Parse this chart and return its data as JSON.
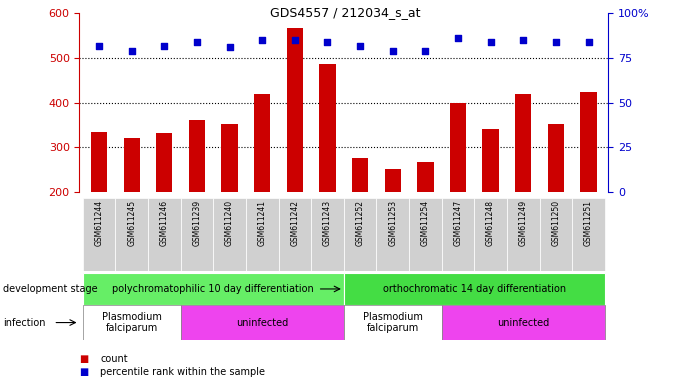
{
  "title": "GDS4557 / 212034_s_at",
  "samples": [
    "GSM611244",
    "GSM611245",
    "GSM611246",
    "GSM611239",
    "GSM611240",
    "GSM611241",
    "GSM611242",
    "GSM611243",
    "GSM611252",
    "GSM611253",
    "GSM611254",
    "GSM611247",
    "GSM611248",
    "GSM611249",
    "GSM611250",
    "GSM611251"
  ],
  "counts": [
    335,
    320,
    332,
    362,
    352,
    420,
    567,
    487,
    277,
    252,
    267,
    400,
    342,
    420,
    352,
    425
  ],
  "percentiles": [
    82,
    79,
    82,
    84,
    81,
    85,
    85,
    84,
    82,
    79,
    79,
    86,
    84,
    85,
    84,
    84
  ],
  "bar_color": "#cc0000",
  "marker_color": "#0000cc",
  "ylim_left": [
    200,
    600
  ],
  "ylim_right": [
    0,
    100
  ],
  "yticks_left": [
    200,
    300,
    400,
    500,
    600
  ],
  "yticks_right": [
    0,
    25,
    50,
    75,
    100
  ],
  "grid_values": [
    300,
    400,
    500
  ],
  "development_stage_groups": [
    {
      "label": "polychromatophilic 10 day differentiation",
      "start": 0,
      "end": 7,
      "color": "#66ee66"
    },
    {
      "label": "orthochromatic 14 day differentiation",
      "start": 8,
      "end": 15,
      "color": "#44dd44"
    }
  ],
  "infection_groups": [
    {
      "label": "Plasmodium\nfalciparum",
      "start": 0,
      "end": 2,
      "color": "#ffffff"
    },
    {
      "label": "uninfected",
      "start": 3,
      "end": 7,
      "color": "#ee44ee"
    },
    {
      "label": "Plasmodium\nfalciparum",
      "start": 8,
      "end": 10,
      "color": "#ffffff"
    },
    {
      "label": "uninfected",
      "start": 11,
      "end": 15,
      "color": "#ee44ee"
    }
  ],
  "dev_stage_label": "development stage",
  "infection_label": "infection",
  "legend_count": "count",
  "legend_percentile": "percentile rank within the sample",
  "left_axis_color": "#cc0000",
  "right_axis_color": "#0000cc",
  "bar_width": 0.5,
  "label_col_color": "#d0d0d0"
}
